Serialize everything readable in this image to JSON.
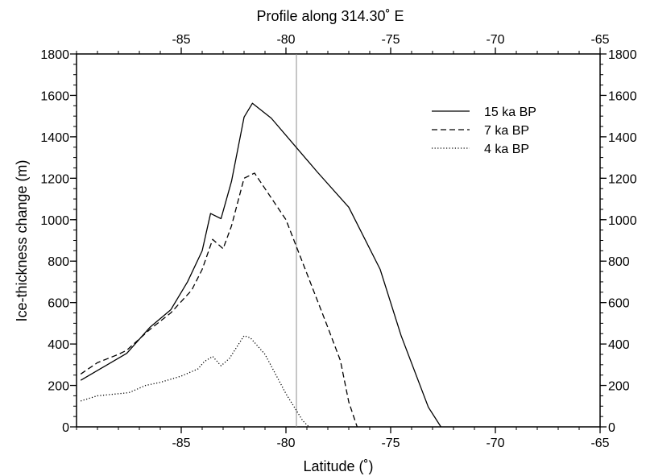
{
  "chart_data": {
    "type": "line",
    "title": "Profile along 314.30˚ E",
    "xlabel": "Latitude (˚)",
    "ylabel": "Ice-thickness change (m)",
    "xlim": [
      -90,
      -65
    ],
    "ylim": [
      0,
      1800
    ],
    "x_ticks": [
      -85,
      -80,
      -75,
      -70,
      -65
    ],
    "y_ticks": [
      0,
      200,
      400,
      600,
      800,
      1000,
      1200,
      1400,
      1600,
      1800
    ],
    "x_tick_labels": [
      "-85",
      "-80",
      "-75",
      "-70",
      "-65"
    ],
    "y_tick_labels": [
      "0",
      "200",
      "400",
      "600",
      "800",
      "1000",
      "1200",
      "1400",
      "1600",
      "1800"
    ],
    "vertical_reference_line_x": -79.5,
    "legend_position": "top-right",
    "grid": false,
    "series": [
      {
        "name": "15 ka BP",
        "style": "solid",
        "x": [
          -89.8,
          -87.6,
          -86.5,
          -85.5,
          -84.7,
          -84.0,
          -83.6,
          -83.1,
          -82.6,
          -82.0,
          -81.6,
          -80.7,
          -79.6,
          -78.5,
          -77.0,
          -75.5,
          -74.5,
          -73.2,
          -72.6
        ],
        "y": [
          225,
          355,
          480,
          565,
          700,
          850,
          1030,
          1005,
          1185,
          1495,
          1562,
          1490,
          1360,
          1230,
          1060,
          760,
          440,
          95,
          0
        ]
      },
      {
        "name": "7 ka BP",
        "style": "dashed",
        "x": [
          -89.8,
          -89.0,
          -88.0,
          -87.6,
          -86.5,
          -85.5,
          -84.5,
          -84.0,
          -83.5,
          -83.0,
          -82.6,
          -82.0,
          -81.5,
          -81.0,
          -80.0,
          -79.0,
          -78.0,
          -77.4,
          -77.0,
          -76.6
        ],
        "y": [
          255,
          310,
          350,
          370,
          470,
          550,
          660,
          760,
          905,
          860,
          970,
          1200,
          1225,
          1150,
          1000,
          740,
          480,
          320,
          120,
          0
        ]
      },
      {
        "name": "4 ka BP",
        "style": "dotted",
        "x": [
          -89.8,
          -89.0,
          -88.0,
          -87.5,
          -86.7,
          -86.0,
          -85.0,
          -84.2,
          -83.9,
          -83.5,
          -83.1,
          -82.7,
          -82.0,
          -81.7,
          -81.0,
          -80.0,
          -79.2,
          -78.9
        ],
        "y": [
          125,
          150,
          160,
          165,
          200,
          215,
          245,
          280,
          315,
          340,
          295,
          330,
          440,
          430,
          350,
          160,
          30,
          0
        ]
      }
    ]
  }
}
